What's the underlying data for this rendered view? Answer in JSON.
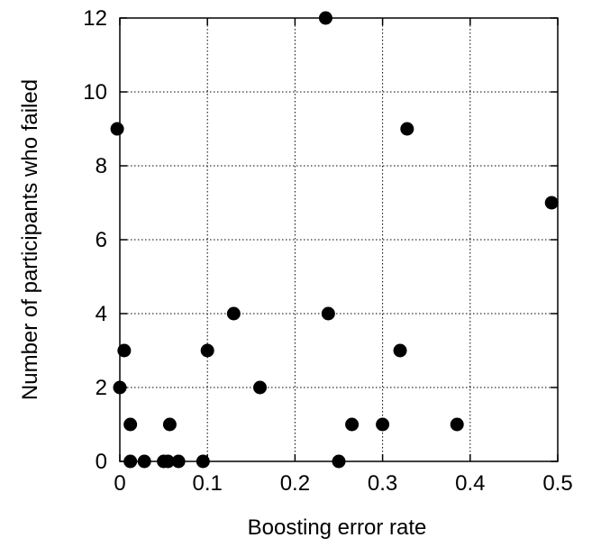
{
  "chart_data": {
    "type": "scatter",
    "title": "",
    "xlabel": "Boosting error rate",
    "ylabel": "Number of participants who failed",
    "xlim": [
      0,
      0.5
    ],
    "ylim": [
      0,
      12
    ],
    "x_ticks": [
      "0",
      "0.1",
      "0.2",
      "0.3",
      "0.4",
      "0.5"
    ],
    "y_ticks": [
      "0",
      "2",
      "4",
      "6",
      "8",
      "10",
      "12"
    ],
    "grid": true,
    "legend": "none",
    "points": [
      {
        "x": -0.003,
        "y": 9
      },
      {
        "x": 0.0,
        "y": 2
      },
      {
        "x": 0.005,
        "y": 3
      },
      {
        "x": 0.012,
        "y": 1
      },
      {
        "x": 0.012,
        "y": 0
      },
      {
        "x": 0.028,
        "y": 0
      },
      {
        "x": 0.05,
        "y": 0
      },
      {
        "x": 0.055,
        "y": 0
      },
      {
        "x": 0.057,
        "y": 1
      },
      {
        "x": 0.067,
        "y": 0
      },
      {
        "x": 0.095,
        "y": 0
      },
      {
        "x": 0.1,
        "y": 3
      },
      {
        "x": 0.13,
        "y": 4
      },
      {
        "x": 0.16,
        "y": 2
      },
      {
        "x": 0.235,
        "y": 12
      },
      {
        "x": 0.238,
        "y": 4
      },
      {
        "x": 0.25,
        "y": 0
      },
      {
        "x": 0.265,
        "y": 1
      },
      {
        "x": 0.3,
        "y": 1
      },
      {
        "x": 0.32,
        "y": 3
      },
      {
        "x": 0.328,
        "y": 9
      },
      {
        "x": 0.385,
        "y": 1
      },
      {
        "x": 0.493,
        "y": 7
      }
    ]
  }
}
